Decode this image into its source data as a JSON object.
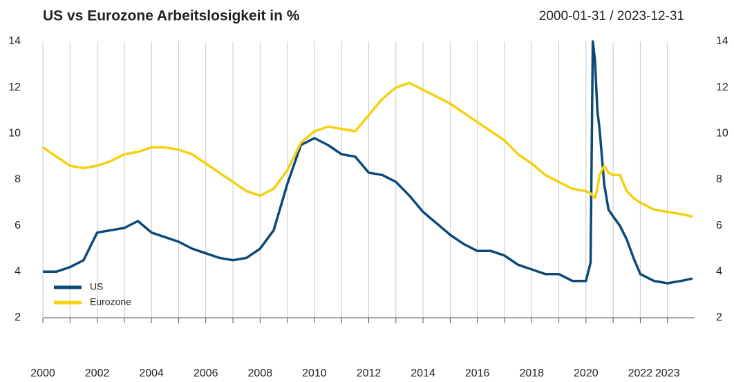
{
  "chart_data": {
    "type": "line",
    "title": "US vs Eurozone Arbeitslosigkeit in %",
    "subtitle": "2000-01-31 / 2023-12-31",
    "x": [
      2000.0,
      2000.5,
      2001.0,
      2001.5,
      2002.0,
      2002.5,
      2003.0,
      2003.5,
      2004.0,
      2004.5,
      2005.0,
      2005.5,
      2006.0,
      2006.5,
      2007.0,
      2007.5,
      2008.0,
      2008.5,
      2009.0,
      2009.5,
      2010.0,
      2010.5,
      2011.0,
      2011.5,
      2012.0,
      2012.5,
      2013.0,
      2013.5,
      2014.0,
      2014.5,
      2015.0,
      2015.5,
      2016.0,
      2016.5,
      2017.0,
      2017.5,
      2018.0,
      2018.5,
      2019.0,
      2019.5,
      2020.0,
      2020.17,
      2020.25,
      2020.33,
      2020.42,
      2020.5,
      2020.67,
      2020.83,
      2021.0,
      2021.25,
      2021.5,
      2021.75,
      2022.0,
      2022.5,
      2023.0,
      2023.5,
      2023.92
    ],
    "series": [
      {
        "name": "US",
        "color": "#0b4a78",
        "values": [
          4.0,
          4.0,
          4.2,
          4.5,
          5.7,
          5.8,
          5.9,
          6.2,
          5.7,
          5.5,
          5.3,
          5.0,
          4.8,
          4.6,
          4.5,
          4.6,
          5.0,
          5.8,
          7.8,
          9.5,
          9.8,
          9.5,
          9.1,
          9.0,
          8.3,
          8.2,
          7.9,
          7.3,
          6.6,
          6.1,
          5.6,
          5.2,
          4.9,
          4.9,
          4.7,
          4.3,
          4.1,
          3.9,
          3.9,
          3.6,
          3.6,
          4.4,
          14.0,
          13.2,
          11.0,
          10.2,
          7.8,
          6.7,
          6.4,
          6.0,
          5.4,
          4.6,
          3.9,
          3.6,
          3.5,
          3.6,
          3.7
        ]
      },
      {
        "name": "Eurozone",
        "color": "#f5d00f",
        "values": [
          9.4,
          9.0,
          8.6,
          8.5,
          8.6,
          8.8,
          9.1,
          9.2,
          9.4,
          9.4,
          9.3,
          9.1,
          8.7,
          8.3,
          7.9,
          7.5,
          7.3,
          7.6,
          8.4,
          9.6,
          10.1,
          10.3,
          10.2,
          10.1,
          10.8,
          11.5,
          12.0,
          12.2,
          11.9,
          11.6,
          11.3,
          10.9,
          10.5,
          10.1,
          9.7,
          9.1,
          8.7,
          8.2,
          7.9,
          7.6,
          7.5,
          7.4,
          7.3,
          7.2,
          7.6,
          8.2,
          8.6,
          8.3,
          8.2,
          8.2,
          7.5,
          7.2,
          7.0,
          6.7,
          6.6,
          6.5,
          6.4
        ]
      }
    ],
    "xlim": [
      2000,
      2024
    ],
    "xticks": [
      2000,
      2002,
      2004,
      2006,
      2008,
      2010,
      2012,
      2014,
      2016,
      2018,
      2020,
      2022,
      2023
    ],
    "xminorticks": [
      2001,
      2003,
      2005,
      2007,
      2009,
      2011,
      2013,
      2015,
      2017,
      2019,
      2021
    ],
    "ylim": [
      2,
      14
    ],
    "yticks": [
      2,
      4,
      6,
      8,
      10,
      12,
      14
    ],
    "grid": true,
    "legend": "lower left"
  }
}
